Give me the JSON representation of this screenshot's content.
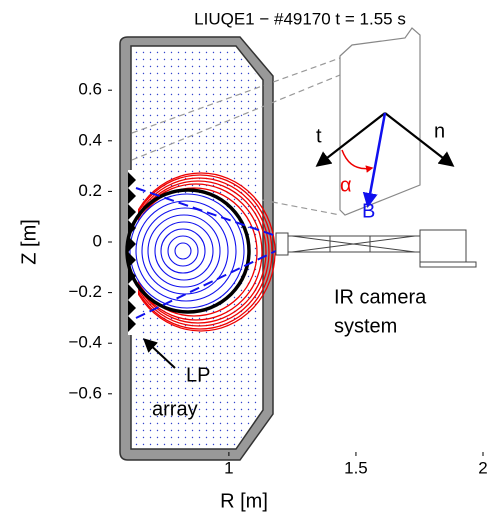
{
  "chart_data": {
    "type": "equilibrium",
    "title": "LIUQE1 − #49170   t = 1.55 s",
    "x_label": "R [m]",
    "y_label": "Z [m]",
    "xlim": [
      0.54,
      2.0
    ],
    "ylim": [
      -0.83,
      0.83
    ],
    "xticks": [
      1,
      1.5,
      2
    ],
    "yticks": [
      {
        "value": -0.6,
        "label": "−0.6"
      },
      {
        "value": -0.4,
        "label": "−0.4"
      },
      {
        "value": -0.2,
        "label": "−0.2"
      },
      0,
      0.2,
      0.4,
      0.6
    ],
    "annotations": {
      "t": "t",
      "n": "n",
      "alpha": "α",
      "b": "B",
      "camera": [
        "IR camera",
        "system"
      ],
      "probes": [
        "LP",
        "array"
      ]
    }
  }
}
